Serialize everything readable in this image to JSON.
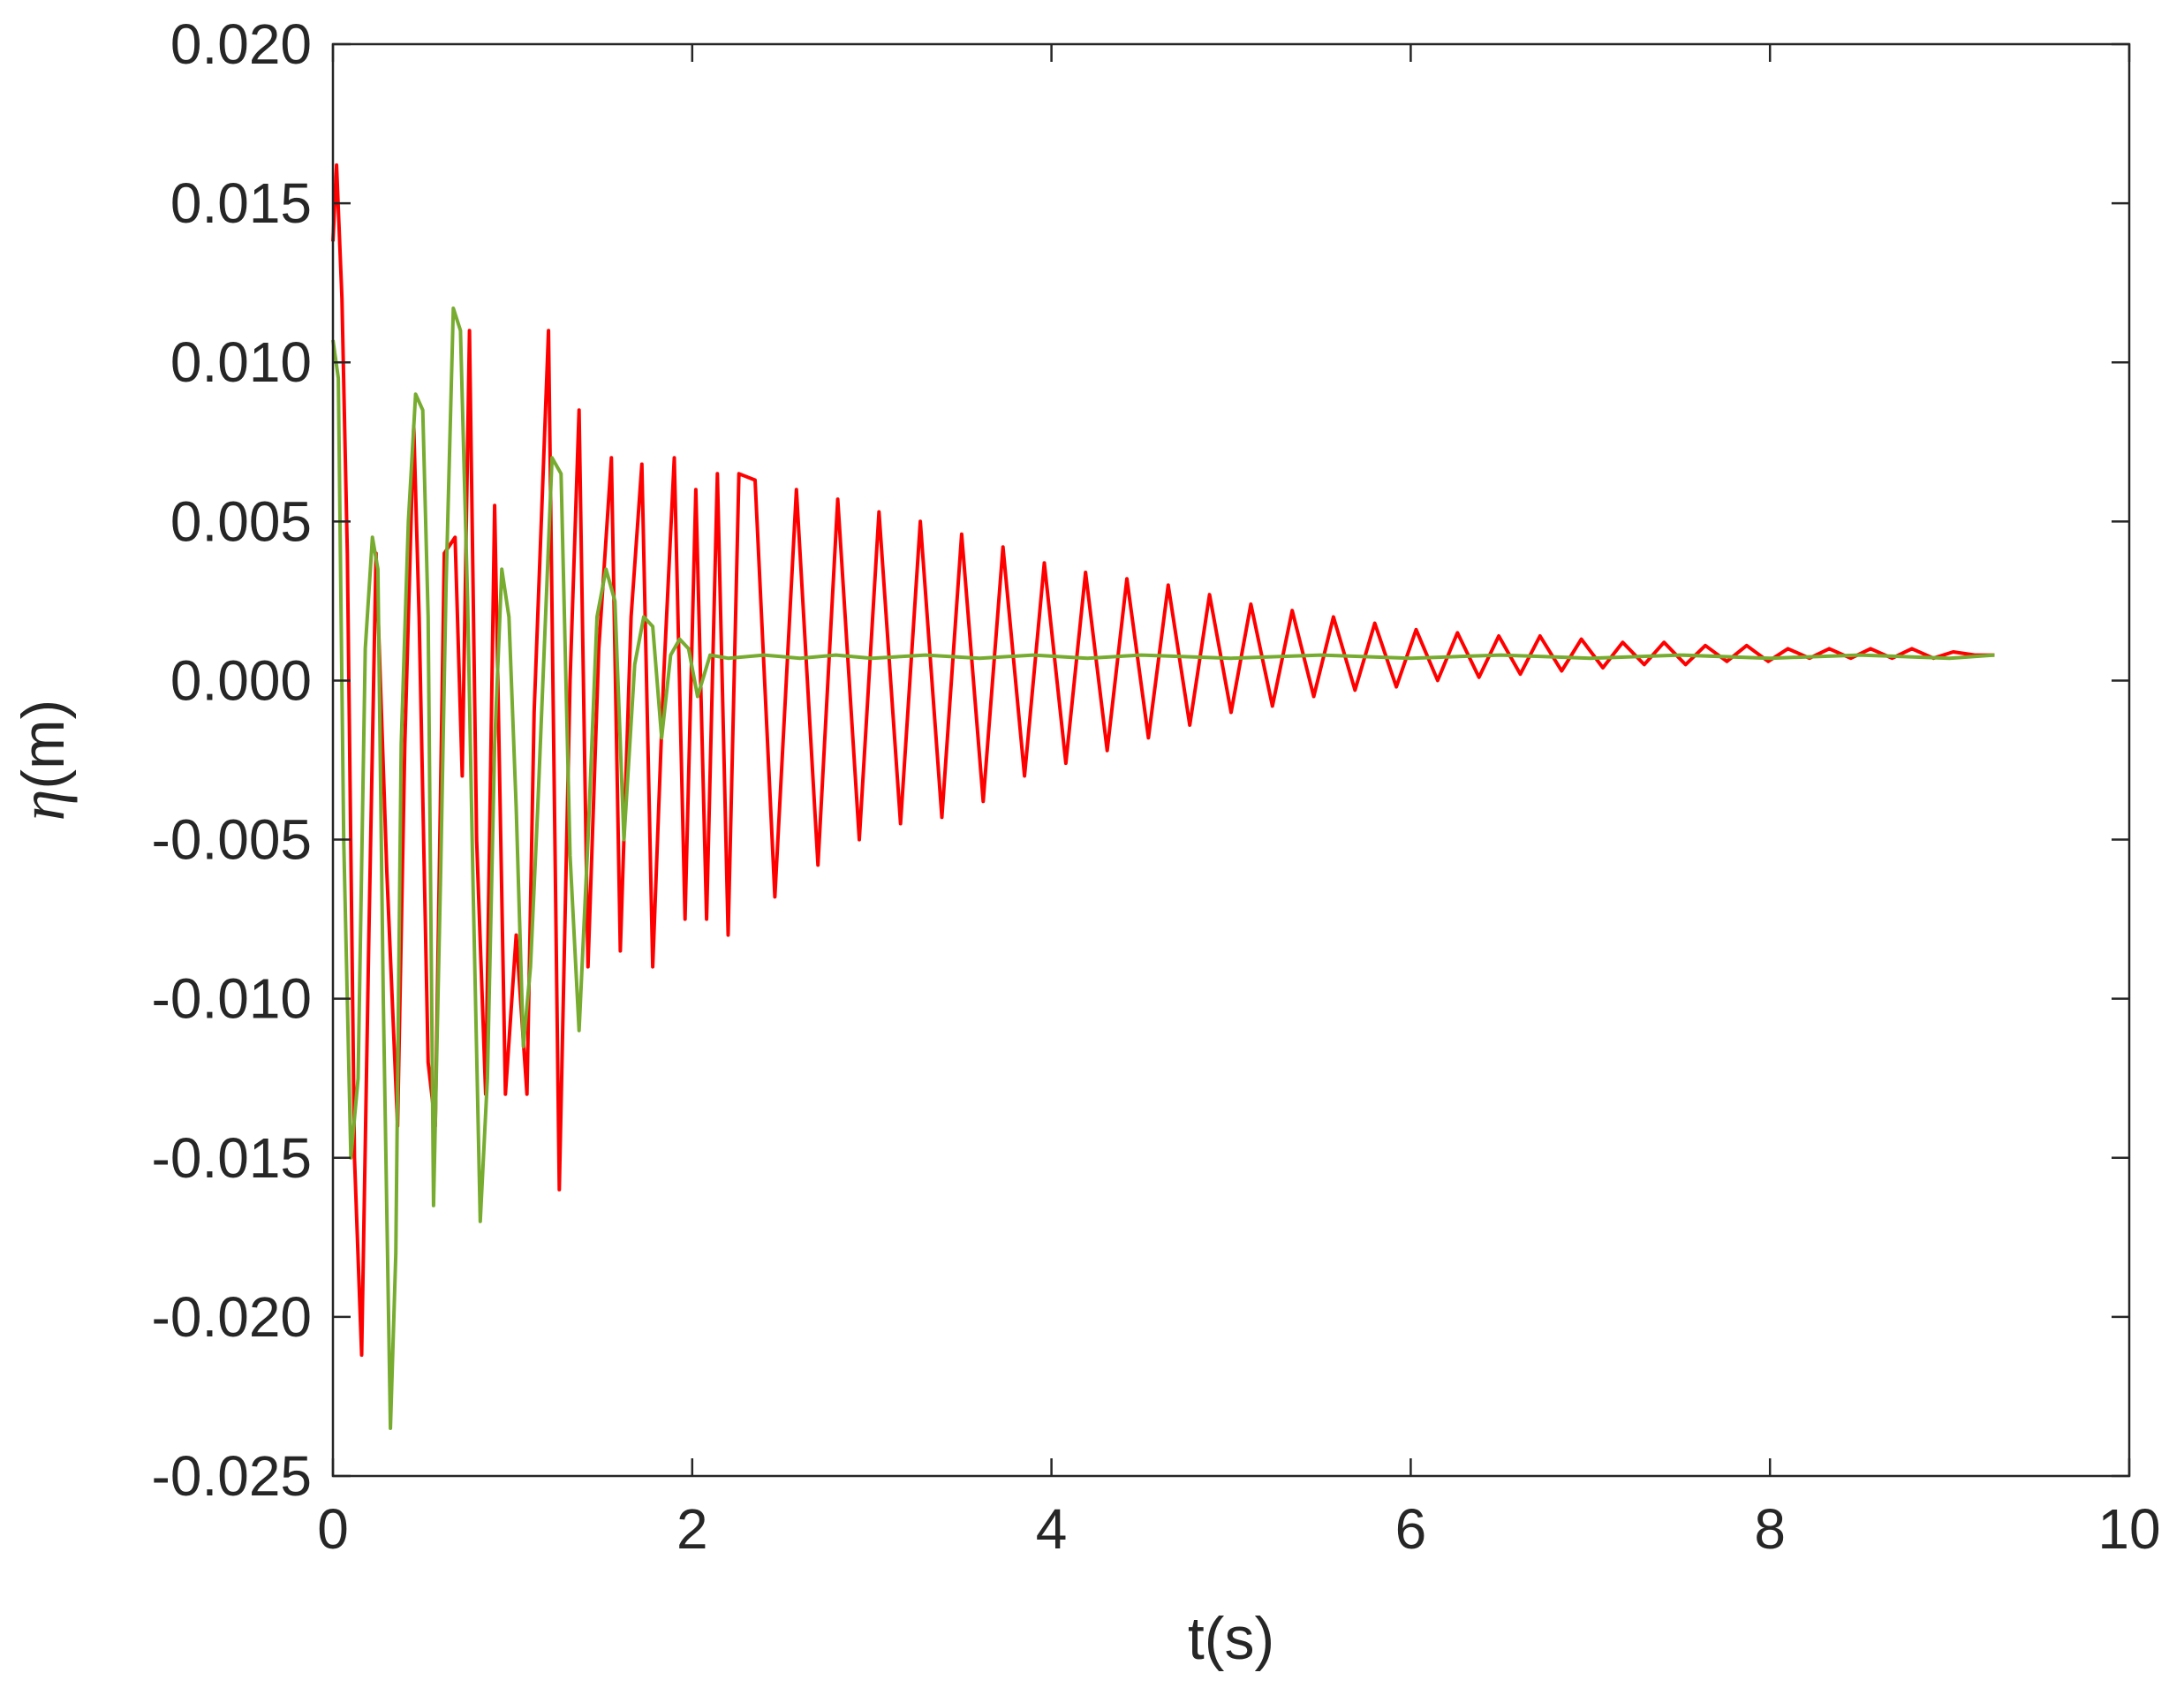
{
  "chart_data": {
    "type": "line",
    "xlabel": "t(s)",
    "ylabel_symbol": "η",
    "ylabel_unit": "(m)",
    "xlim": [
      0,
      10
    ],
    "ylim": [
      -0.025,
      0.02
    ],
    "xticks": [
      0,
      2,
      4,
      6,
      8,
      10
    ],
    "xtick_labels": [
      "0",
      "2",
      "4",
      "6",
      "8",
      "10"
    ],
    "yticks": [
      0.02,
      0.015,
      0.01,
      0.005,
      0.0,
      -0.005,
      -0.01,
      -0.015,
      -0.02,
      -0.025
    ],
    "ytick_labels": [
      "0.020",
      "0.015",
      "0.010",
      "0.005",
      "0.000",
      "-0.005",
      "-0.010",
      "-0.015",
      "-0.020",
      "-0.025"
    ],
    "grid": false,
    "series": [
      {
        "color": "#ff0000",
        "x": [
          0,
          0.02,
          0.05,
          0.08,
          0.12,
          0.16,
          0.2,
          0.24,
          0.3,
          0.36,
          0.4,
          0.45,
          0.48,
          0.53,
          0.57,
          0.62,
          0.68,
          0.72,
          0.76,
          0.8,
          0.85,
          0.9,
          0.96,
          1.02,
          1.08,
          1.12,
          1.2,
          1.26,
          1.32,
          1.37,
          1.42,
          1.48,
          1.55,
          1.6,
          1.66,
          1.72,
          1.78,
          1.84,
          1.9,
          1.96,
          2.02,
          2.08,
          2.14,
          2.2,
          2.26,
          2.35,
          2.46,
          2.58,
          2.7,
          2.81,
          2.93,
          3.04,
          3.16,
          3.27,
          3.39,
          3.5,
          3.62,
          3.73,
          3.85,
          3.96,
          4.08,
          4.19,
          4.31,
          4.42,
          4.54,
          4.65,
          4.77,
          4.88,
          5.0,
          5.11,
          5.23,
          5.34,
          5.46,
          5.57,
          5.69,
          5.8,
          5.92,
          6.03,
          6.15,
          6.26,
          6.38,
          6.49,
          6.61,
          6.72,
          6.84,
          6.95,
          7.07,
          7.18,
          7.3,
          7.41,
          7.53,
          7.64,
          7.76,
          7.87,
          7.99,
          8.1,
          8.22,
          8.33,
          8.45,
          8.56,
          8.68,
          8.79,
          8.91,
          9.02,
          9.14,
          9.25
        ],
        "y": [
          0.0138,
          0.0162,
          0.012,
          0.004,
          -0.015,
          -0.0212,
          -0.008,
          0.004,
          -0.006,
          -0.014,
          -0.002,
          0.008,
          0.002,
          -0.012,
          -0.014,
          0.004,
          0.0045,
          -0.003,
          0.011,
          -0.005,
          -0.013,
          0.0055,
          -0.013,
          -0.008,
          -0.013,
          -0.001,
          0.011,
          -0.016,
          0.0,
          0.0085,
          -0.009,
          0.001,
          0.007,
          -0.0085,
          0.002,
          0.0068,
          -0.009,
          0.0,
          0.007,
          -0.0075,
          0.006,
          -0.0075,
          0.0065,
          -0.008,
          0.0065,
          0.0063,
          -0.0068,
          0.006,
          -0.0058,
          0.0057,
          -0.005,
          0.0053,
          -0.0045,
          0.005,
          -0.0043,
          0.0046,
          -0.0038,
          0.0042,
          -0.003,
          0.0037,
          -0.0026,
          0.0034,
          -0.0022,
          0.0032,
          -0.0018,
          0.003,
          -0.0014,
          0.0027,
          -0.001,
          0.0024,
          -0.0008,
          0.0022,
          -0.0005,
          0.002,
          -0.0003,
          0.0018,
          -0.0002,
          0.0016,
          0.0,
          0.0015,
          0.0001,
          0.0014,
          0.0002,
          0.0014,
          0.0003,
          0.0013,
          0.0004,
          0.0012,
          0.0005,
          0.0012,
          0.0005,
          0.0011,
          0.0006,
          0.0011,
          0.0006,
          0.001,
          0.0007,
          0.001,
          0.0007,
          0.001,
          0.0007,
          0.001,
          0.0007,
          0.0009,
          0.0008,
          0.0008
        ]
      },
      {
        "color": "#77ac30",
        "x": [
          0,
          0.03,
          0.06,
          0.1,
          0.14,
          0.18,
          0.22,
          0.25,
          0.28,
          0.32,
          0.35,
          0.38,
          0.42,
          0.46,
          0.5,
          0.53,
          0.56,
          0.6,
          0.63,
          0.67,
          0.71,
          0.75,
          0.78,
          0.82,
          0.86,
          0.9,
          0.94,
          0.98,
          1.02,
          1.06,
          1.1,
          1.14,
          1.18,
          1.22,
          1.27,
          1.32,
          1.37,
          1.42,
          1.47,
          1.52,
          1.57,
          1.62,
          1.68,
          1.73,
          1.78,
          1.83,
          1.88,
          1.93,
          1.98,
          2.03,
          2.1,
          2.2,
          2.4,
          2.6,
          2.8,
          3.0,
          3.3,
          3.6,
          3.9,
          4.2,
          4.5,
          5.0,
          5.5,
          6.0,
          6.5,
          7.0,
          7.5,
          8.0,
          8.5,
          9.0,
          9.25
        ],
        "y": [
          0.0107,
          0.0095,
          -0.005,
          -0.015,
          -0.0125,
          0.001,
          0.0045,
          0.0035,
          -0.01,
          -0.0235,
          -0.018,
          -0.002,
          0.005,
          0.009,
          0.0085,
          0.002,
          -0.0165,
          -0.006,
          0.003,
          0.0117,
          0.011,
          0.0025,
          -0.0065,
          -0.017,
          -0.0125,
          -0.002,
          0.0035,
          0.002,
          -0.004,
          -0.0115,
          -0.009,
          -0.004,
          0.0015,
          0.007,
          0.0065,
          -0.0055,
          -0.011,
          -0.005,
          0.002,
          0.0035,
          0.0025,
          -0.005,
          0.0005,
          0.002,
          0.0017,
          -0.0018,
          0.0008,
          0.0013,
          0.001,
          -0.0005,
          0.0008,
          0.0007,
          0.0008,
          0.0007,
          0.0008,
          0.0007,
          0.0008,
          0.0007,
          0.0008,
          0.0007,
          0.0008,
          0.0007,
          0.0008,
          0.0007,
          0.0008,
          0.0007,
          0.0008,
          0.0007,
          0.0008,
          0.0007,
          0.0008
        ]
      }
    ]
  }
}
